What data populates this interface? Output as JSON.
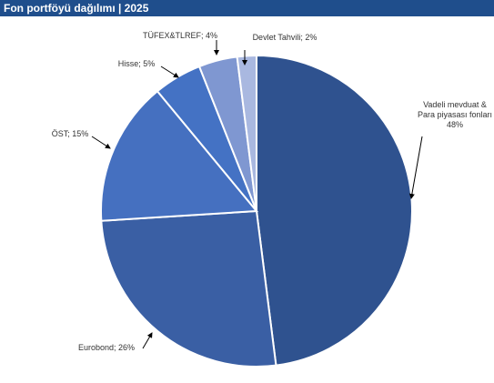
{
  "title": "Fon portföyü dağılımı | 2025",
  "chart_data": {
    "type": "pie",
    "title": "Fon portföyü dağılımı | 2025",
    "slices": [
      {
        "name": "Vadeli mevduat & Para piyasası fonları",
        "value": 48,
        "label_lines": [
          "Vadeli mevduat &",
          "Para piyasası fonları",
          "48%"
        ],
        "color": "#2f528f"
      },
      {
        "name": "Eurobond",
        "value": 26,
        "label_lines": [
          "Eurobond; 26%"
        ],
        "color": "#3a5fa4"
      },
      {
        "name": "ÖST",
        "value": 15,
        "label_lines": [
          "ÖST; 15%"
        ],
        "color": "#4570c0"
      },
      {
        "name": "Hisse",
        "value": 5,
        "label_lines": [
          "Hisse; 5%"
        ],
        "color": "#4472c4"
      },
      {
        "name": "TÜFEX&TLREF",
        "value": 4,
        "label_lines": [
          "TÜFEX&TLREF; 4%"
        ],
        "color": "#7f97d1"
      },
      {
        "name": "Devlet Tahvili",
        "value": 2,
        "label_lines": [
          "Devlet Tahvili; 2%"
        ],
        "color": "#a9b8e0"
      }
    ],
    "legend": "none"
  }
}
